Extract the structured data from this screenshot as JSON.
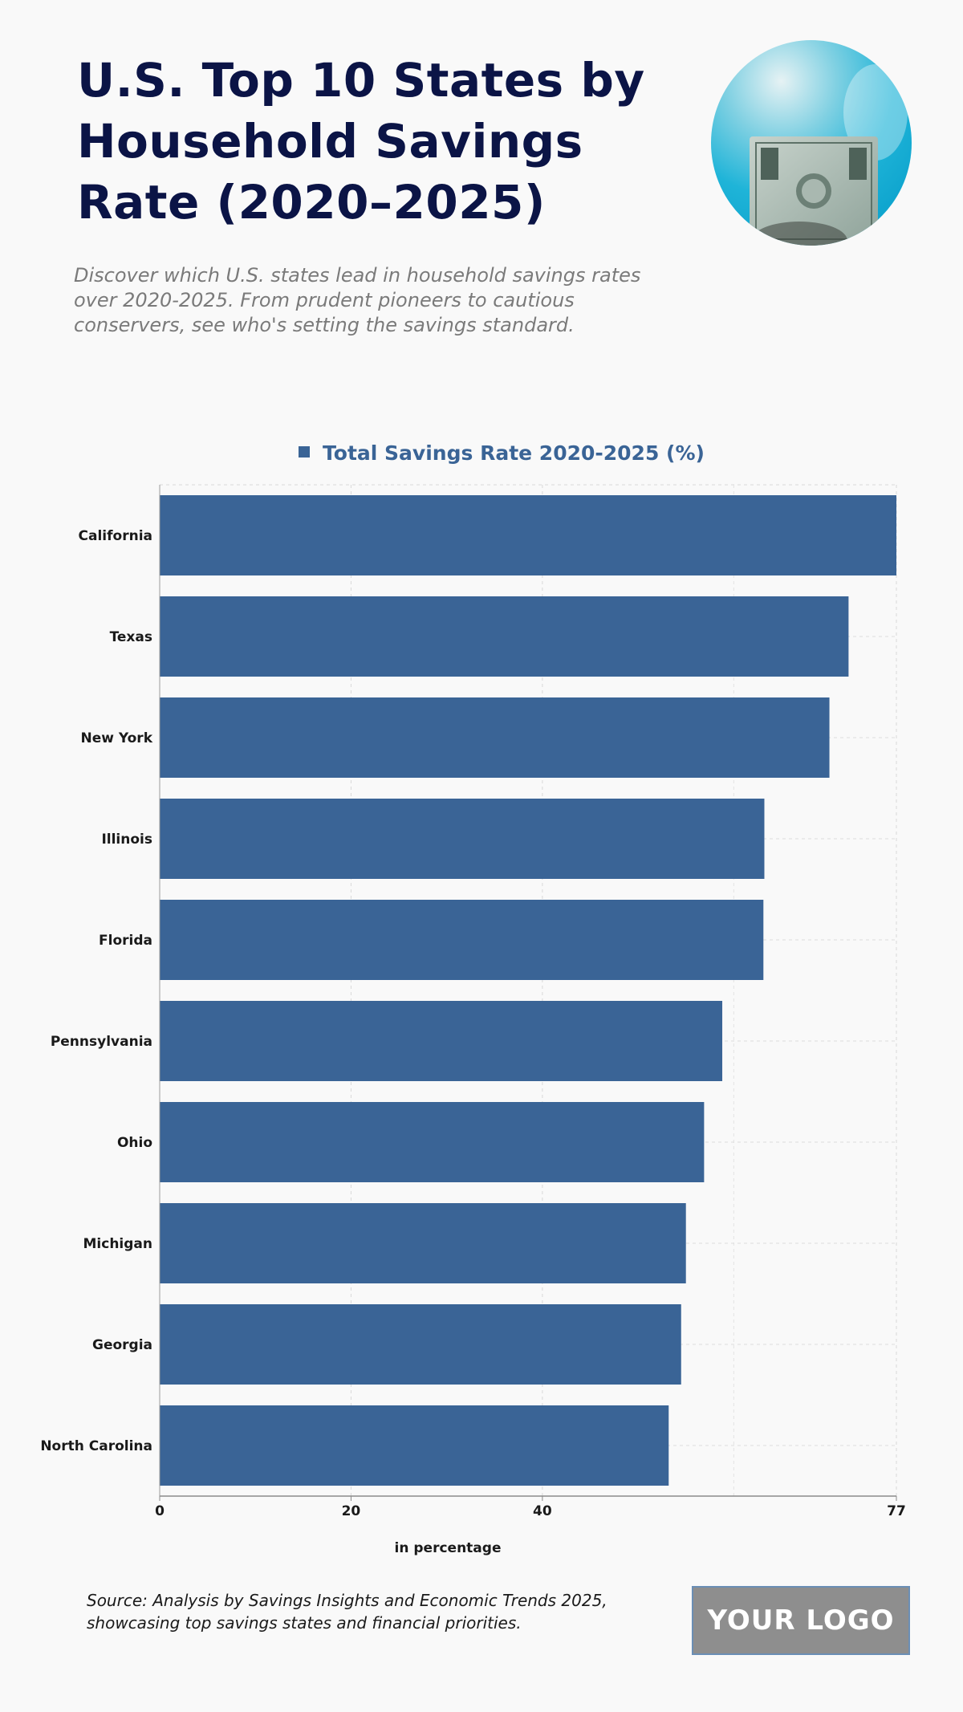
{
  "header": {
    "title": "U.S. Top 10 States by Household Savings Rate (2020–2025)",
    "subtitle": "Discover which U.S. states lead in household savings rates over 2020-2025. From prudent pioneers to cautious conservers, see who's setting the savings standard."
  },
  "hero_image": {
    "icon": "money-banknote-photo"
  },
  "chart_data": {
    "type": "bar",
    "orientation": "horizontal",
    "categories": [
      "California",
      "Texas",
      "New York",
      "Illinois",
      "Florida",
      "Pennsylvania",
      "Ohio",
      "Michigan",
      "Georgia",
      "North Carolina"
    ],
    "series": [
      {
        "name": "Total Savings Rate 2020-2025 (%)",
        "values": [
          77,
          72,
          70,
          63.2,
          63.1,
          58.8,
          56.9,
          55,
          54.5,
          53.2
        ]
      }
    ],
    "xlabel": "in percentage",
    "ylabel": "",
    "xlim": [
      0,
      77
    ],
    "xticks": [
      0,
      20,
      40,
      77
    ],
    "grid": true,
    "legend_position": "top",
    "bar_color": "#3a6496"
  },
  "footer": {
    "source": "Source: Analysis by Savings Insights and Economic Trends 2025, showcasing top savings states and financial priorities.",
    "logo_text": "YOUR LOGO"
  }
}
